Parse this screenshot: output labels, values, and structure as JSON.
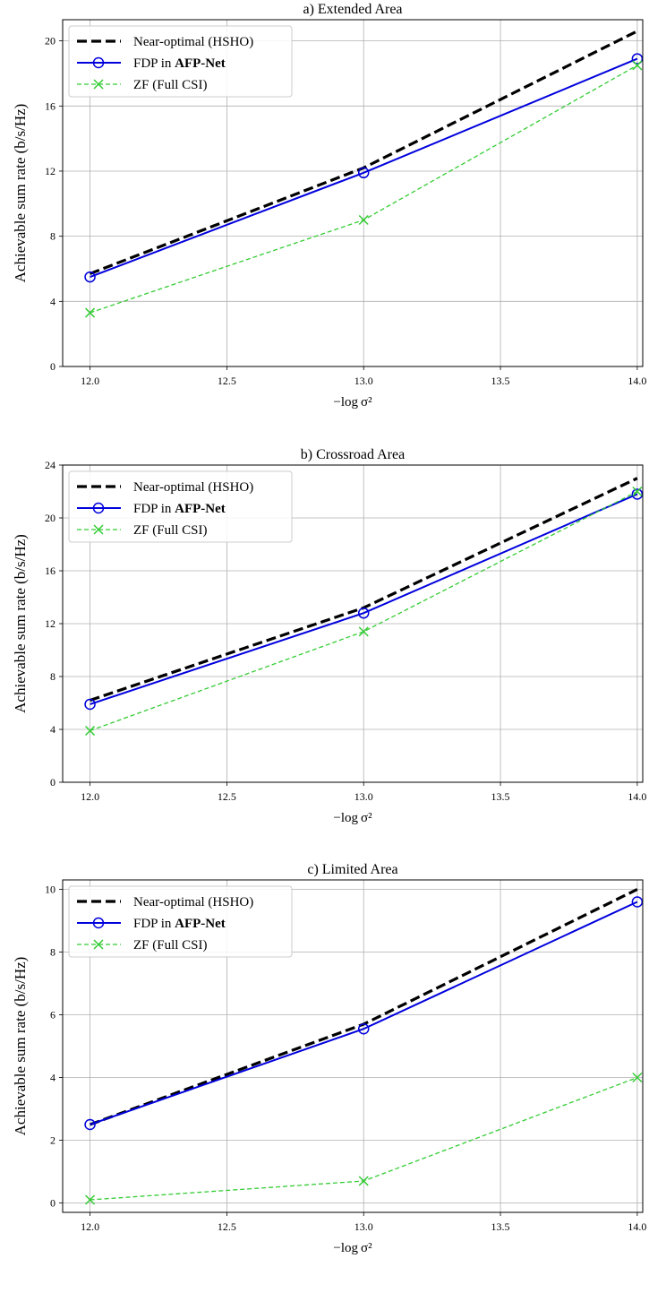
{
  "chart_data": [
    {
      "type": "line",
      "title": "a) Extended Area",
      "xlabel": "−log σ²",
      "ylabel": "Achievable sum rate (b/s/Hz)",
      "x": [
        12.0,
        13.0,
        14.0
      ],
      "xlim": [
        11.9,
        14.02
      ],
      "ylim": [
        0,
        21.3
      ],
      "xticks": [
        12.0,
        12.5,
        13.0,
        13.5,
        14.0
      ],
      "xtick_labels": [
        "12.0",
        "12.5",
        "13.0",
        "13.5",
        "14.0"
      ],
      "yticks": [
        0,
        4,
        8,
        12,
        16,
        20
      ],
      "ytick_labels": [
        "0",
        "4",
        "8",
        "12",
        "16",
        "20"
      ],
      "grid": true,
      "legend_position": "top-left",
      "series": [
        {
          "name": "Near-optimal (HSHO)",
          "values": [
            5.7,
            12.2,
            20.6
          ],
          "color": "#000000",
          "style": "dashed-thick",
          "marker": "none"
        },
        {
          "name": "FDP in ",
          "name_bold": "AFP-Net",
          "values": [
            5.5,
            11.9,
            18.9
          ],
          "color": "#0000dd",
          "style": "solid",
          "marker": "circle"
        },
        {
          "name": "ZF (Full CSI)",
          "values": [
            3.3,
            9.0,
            18.5
          ],
          "color": "#33cc33",
          "style": "dashed",
          "marker": "x"
        }
      ]
    },
    {
      "type": "line",
      "title": "b) Crossroad Area",
      "xlabel": "−log σ²",
      "ylabel": "Achievable sum rate (b/s/Hz)",
      "x": [
        12.0,
        13.0,
        14.0
      ],
      "xlim": [
        11.9,
        14.02
      ],
      "ylim": [
        0,
        24
      ],
      "xticks": [
        12.0,
        12.5,
        13.0,
        13.5,
        14.0
      ],
      "xtick_labels": [
        "12.0",
        "12.5",
        "13.0",
        "13.5",
        "14.0"
      ],
      "yticks": [
        0,
        4,
        8,
        12,
        16,
        20,
        24
      ],
      "ytick_labels": [
        "0",
        "4",
        "8",
        "12",
        "16",
        "20",
        "24"
      ],
      "grid": true,
      "legend_position": "top-left",
      "series": [
        {
          "name": "Near-optimal (HSHO)",
          "values": [
            6.2,
            13.2,
            23.0
          ],
          "color": "#000000",
          "style": "dashed-thick",
          "marker": "none"
        },
        {
          "name": "FDP in ",
          "name_bold": "AFP-Net",
          "values": [
            5.9,
            12.8,
            21.8
          ],
          "color": "#0000dd",
          "style": "solid",
          "marker": "circle"
        },
        {
          "name": "ZF (Full CSI)",
          "values": [
            3.9,
            11.4,
            22.0
          ],
          "color": "#33cc33",
          "style": "dashed",
          "marker": "x"
        }
      ]
    },
    {
      "type": "line",
      "title": "c) Limited Area",
      "xlabel": "−log σ²",
      "ylabel": "Achievable sum rate (b/s/Hz)",
      "x": [
        12.0,
        13.0,
        14.0
      ],
      "xlim": [
        11.9,
        14.02
      ],
      "ylim": [
        -0.3,
        10.3
      ],
      "xticks": [
        12.0,
        12.5,
        13.0,
        13.5,
        14.0
      ],
      "xtick_labels": [
        "12.0",
        "12.5",
        "13.0",
        "13.5",
        "14.0"
      ],
      "yticks": [
        0,
        2,
        4,
        6,
        8,
        10
      ],
      "ytick_labels": [
        "0",
        "2",
        "4",
        "6",
        "8",
        "10"
      ],
      "grid": true,
      "legend_position": "top-left",
      "series": [
        {
          "name": "Near-optimal (HSHO)",
          "values": [
            2.5,
            5.7,
            10.0
          ],
          "color": "#000000",
          "style": "dashed-thick",
          "marker": "none"
        },
        {
          "name": "FDP in ",
          "name_bold": "AFP-Net",
          "values": [
            2.5,
            5.55,
            9.6
          ],
          "color": "#0000dd",
          "style": "solid",
          "marker": "circle"
        },
        {
          "name": "ZF (Full CSI)",
          "values": [
            0.1,
            0.7,
            4.0
          ],
          "color": "#33cc33",
          "style": "dashed",
          "marker": "x"
        }
      ]
    }
  ]
}
